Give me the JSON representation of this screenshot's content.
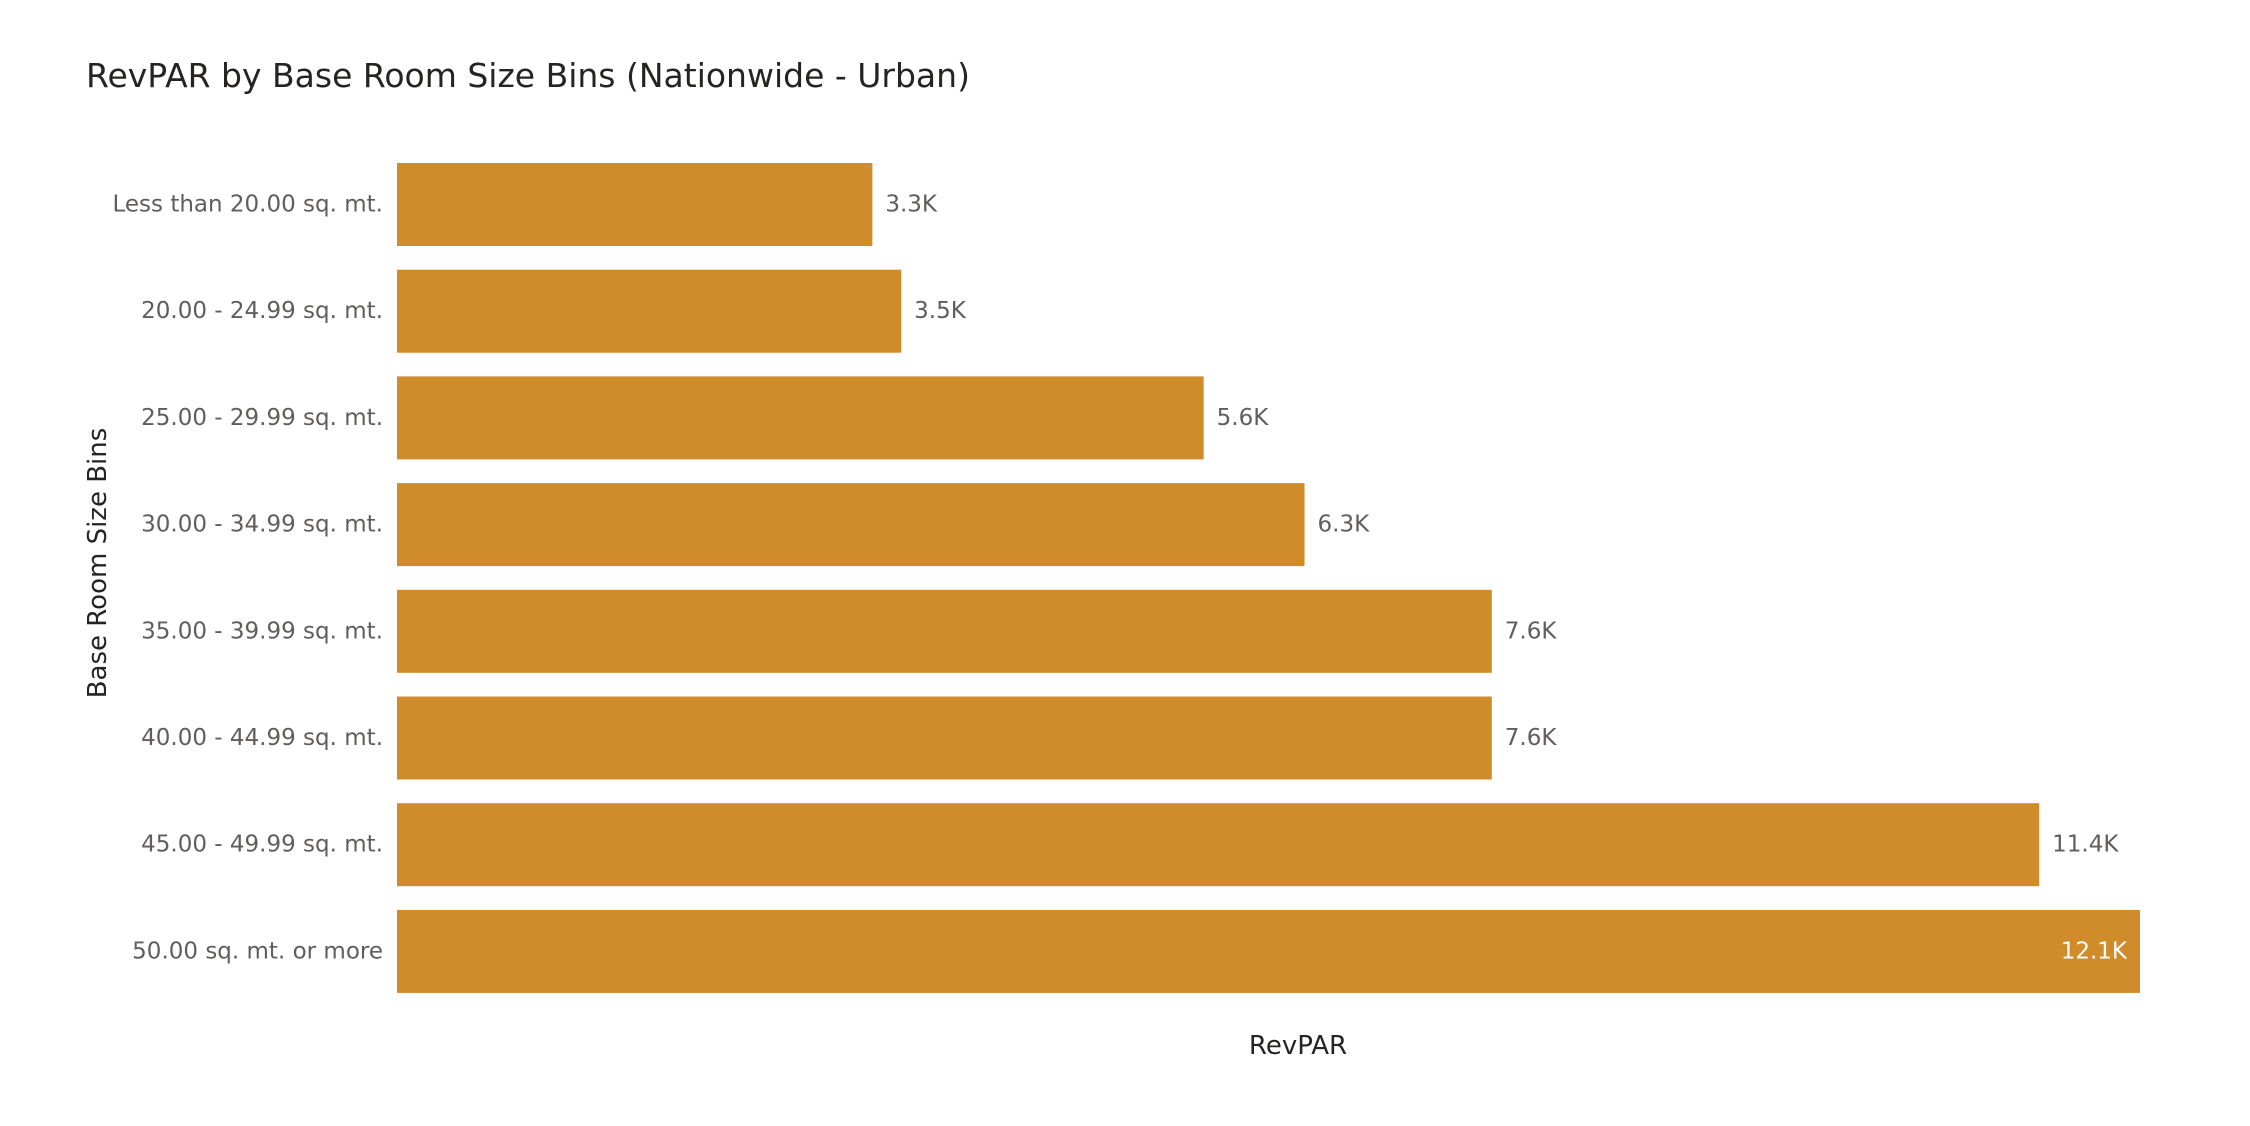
{
  "chart_data": {
    "type": "bar",
    "orientation": "horizontal",
    "title": "RevPAR by Base Room Size Bins (Nationwide - Urban)",
    "xlabel": "RevPAR",
    "ylabel": "Base Room Size Bins",
    "categories": [
      "Less than 20.00 sq. mt.",
      "20.00 - 24.99 sq. mt.",
      "25.00 - 29.99 sq. mt.",
      "30.00 - 34.99 sq. mt.",
      "35.00 - 39.99 sq. mt.",
      "40.00 - 44.99 sq. mt.",
      "45.00 - 49.99 sq. mt.",
      "50.00 sq. mt. or more"
    ],
    "values": [
      3300,
      3500,
      5600,
      6300,
      7600,
      7600,
      11400,
      12100
    ],
    "data_labels": [
      "3.3K",
      "3.5K",
      "5.6K",
      "6.3K",
      "7.6K",
      "7.6K",
      "11.4K",
      "12.1K"
    ],
    "xlim": [
      0,
      12100
    ],
    "grid": false,
    "legend": "none",
    "bar_color": "#D08C2A"
  }
}
